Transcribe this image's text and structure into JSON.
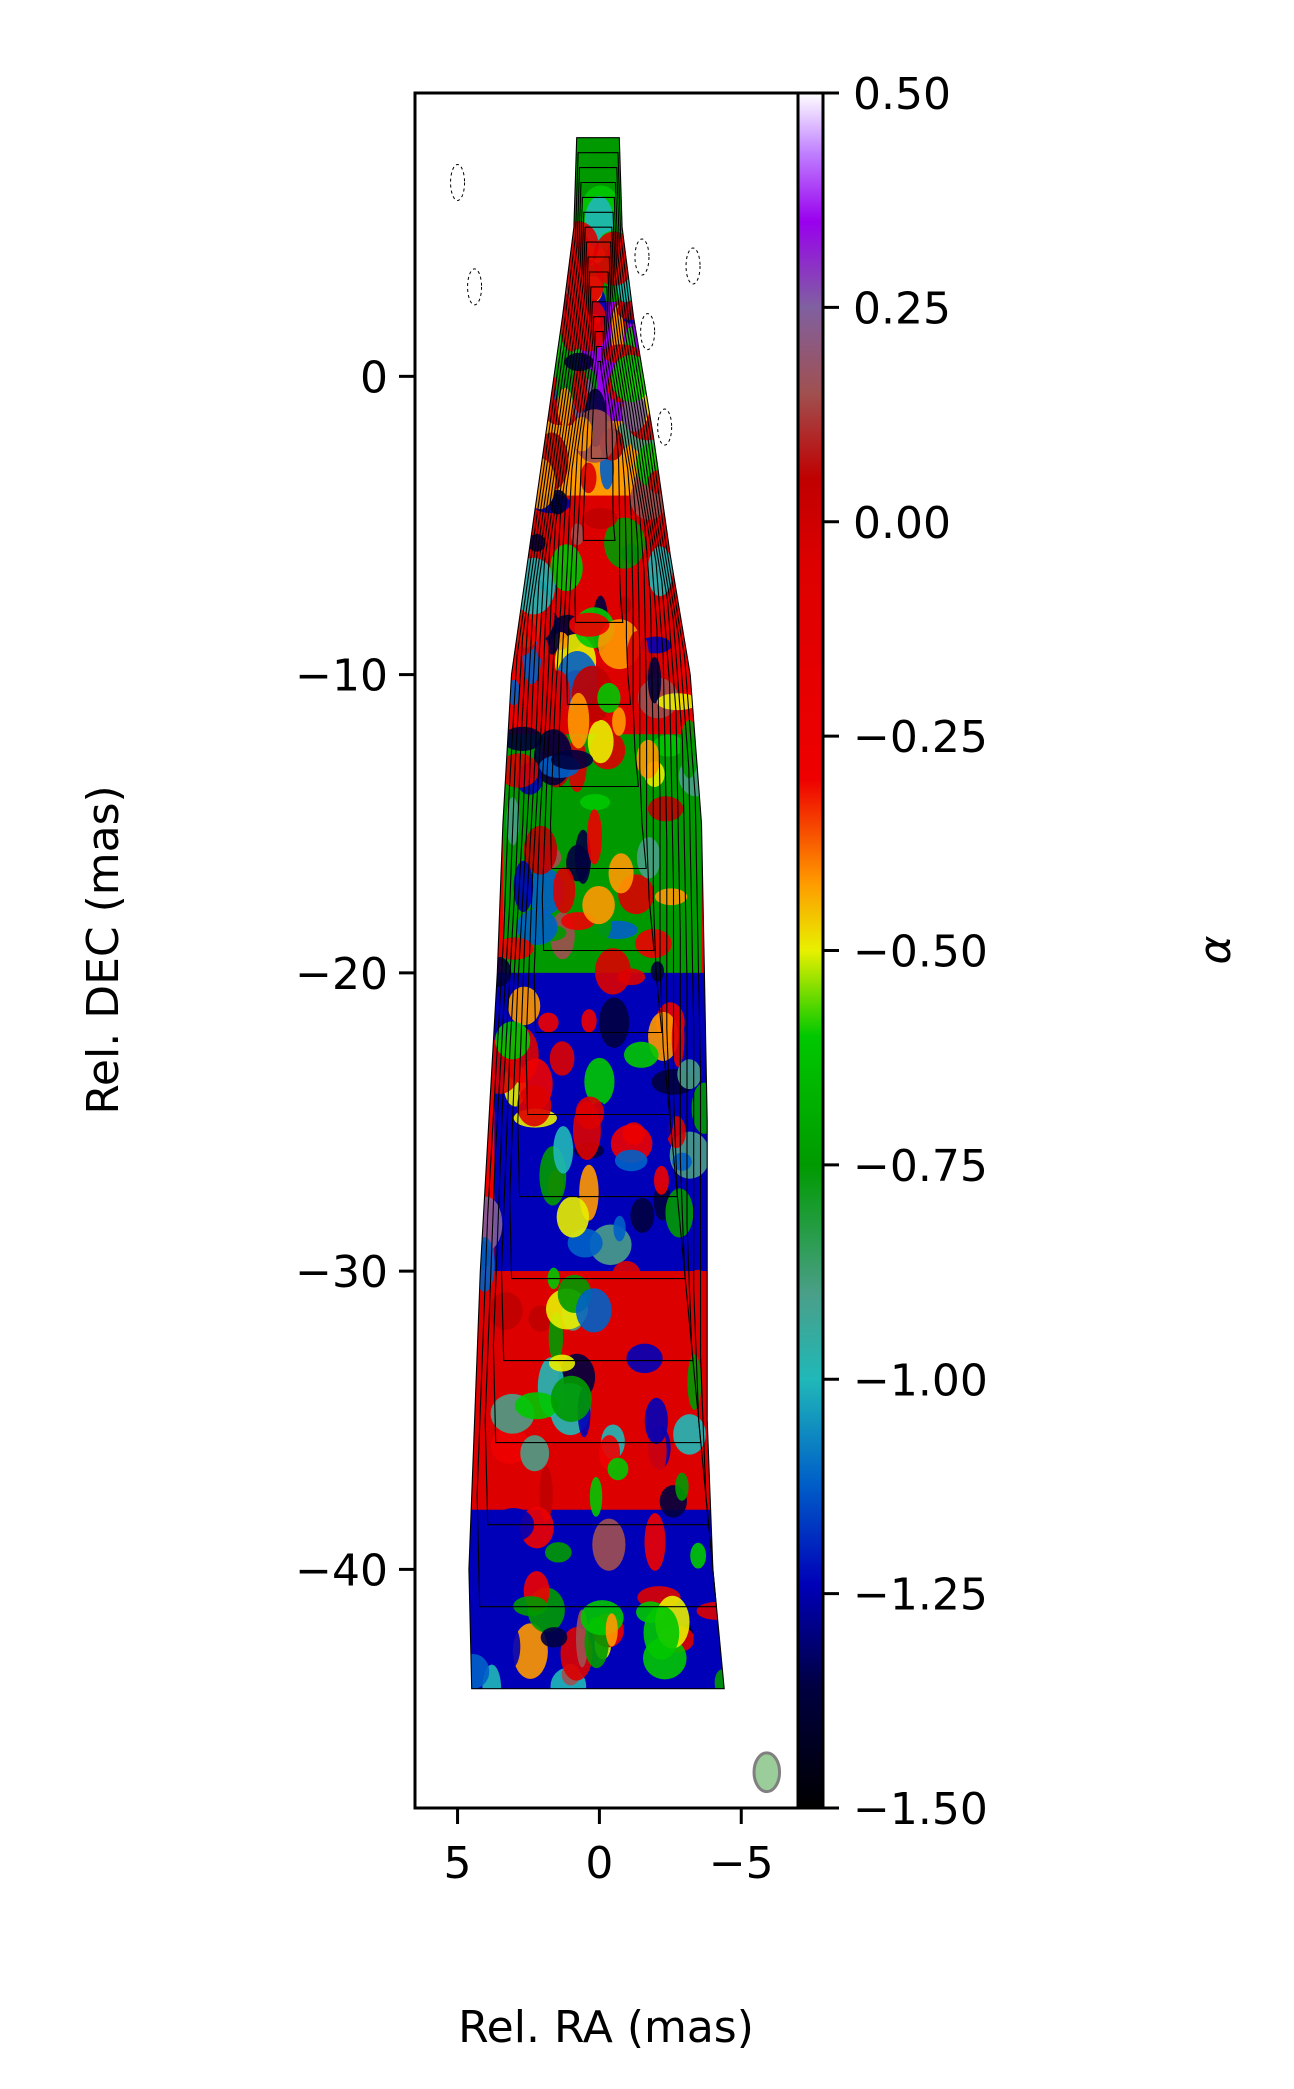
{
  "chart_data": {
    "type": "heatmap",
    "xlabel": "Rel. RA (mas)",
    "ylabel": "Rel. DEC (mas)",
    "x_axis": {
      "lim": [
        6.5,
        -7.0
      ],
      "ticks": [
        5,
        0,
        -5
      ],
      "tick_labels": [
        "5",
        "0",
        "−5"
      ]
    },
    "y_axis": {
      "lim": [
        -48.0,
        9.5
      ],
      "ticks": [
        0,
        -10,
        -20,
        -30,
        -40
      ],
      "tick_labels": [
        "0",
        "−10",
        "−20",
        "−30",
        "−40"
      ]
    },
    "colorbar": {
      "label": "α",
      "lim": [
        -1.5,
        0.5
      ],
      "ticks": [
        0.5,
        0.25,
        0.0,
        -0.25,
        -0.5,
        -0.75,
        -1.0,
        -1.25,
        -1.5
      ],
      "tick_labels": [
        "0.50",
        "0.25",
        "0.00",
        "−0.25",
        "−0.50",
        "−0.75",
        "−1.00",
        "−1.25",
        "−1.50"
      ],
      "colormap_stops": [
        {
          "v": -1.5,
          "color": "#000000"
        },
        {
          "v": -1.36,
          "color": "#000040"
        },
        {
          "v": -1.24,
          "color": "#0000b8"
        },
        {
          "v": -1.12,
          "color": "#0060c8"
        },
        {
          "v": -1.0,
          "color": "#20b8b8"
        },
        {
          "v": -0.9,
          "color": "#4a9f88"
        },
        {
          "v": -0.75,
          "color": "#009a00"
        },
        {
          "v": -0.6,
          "color": "#00c800"
        },
        {
          "v": -0.5,
          "color": "#e8f000"
        },
        {
          "v": -0.42,
          "color": "#ff9900"
        },
        {
          "v": -0.3,
          "color": "#ee0000"
        },
        {
          "v": -0.05,
          "color": "#dd0000"
        },
        {
          "v": 0.05,
          "color": "#c00000"
        },
        {
          "v": 0.15,
          "color": "#a05050"
        },
        {
          "v": 0.25,
          "color": "#8060a0"
        },
        {
          "v": 0.35,
          "color": "#9900ee"
        },
        {
          "v": 0.43,
          "color": "#c080ff"
        },
        {
          "v": 0.5,
          "color": "#ffffff"
        }
      ]
    },
    "jet_profile": [
      {
        "dec": 8.0,
        "left": 0.8,
        "right": -0.7
      },
      {
        "dec": 5.0,
        "left": 0.9,
        "right": -0.8
      },
      {
        "dec": 2.0,
        "left": 1.3,
        "right": -1.2
      },
      {
        "dec": -2.0,
        "left": 1.9,
        "right": -1.9
      },
      {
        "dec": -6.0,
        "left": 2.5,
        "right": -2.5
      },
      {
        "dec": -10.0,
        "left": 3.1,
        "right": -3.2
      },
      {
        "dec": -15.0,
        "left": 3.4,
        "right": -3.6
      },
      {
        "dec": -20.0,
        "left": 3.6,
        "right": -3.7
      },
      {
        "dec": -25.0,
        "left": 3.9,
        "right": -3.8
      },
      {
        "dec": -30.0,
        "left": 4.2,
        "right": -3.8
      },
      {
        "dec": -35.0,
        "left": 4.4,
        "right": -3.8
      },
      {
        "dec": -40.0,
        "left": 4.6,
        "right": -4.0
      },
      {
        "dec": -44.0,
        "left": 4.5,
        "right": -4.4
      }
    ],
    "alpha_regions": [
      {
        "ra_from": 2.0,
        "ra_to": -2.0,
        "dec_from": 9.0,
        "dec_to": 1.0,
        "alpha": -0.75
      },
      {
        "ra_from": 1.4,
        "ra_to": -1.4,
        "dec_from": 2.5,
        "dec_to": -2.5,
        "alpha": 0.3
      },
      {
        "ra_from": 2.0,
        "ra_to": -2.0,
        "dec_from": -1.5,
        "dec_to": -4.0,
        "alpha": -0.45
      },
      {
        "ra_from": 2.8,
        "ra_to": -2.8,
        "dec_from": -4.0,
        "dec_to": -12.0,
        "alpha": -0.2
      },
      {
        "ra_from": 3.4,
        "ra_to": -3.6,
        "dec_from": -12.0,
        "dec_to": -20.0,
        "alpha": -0.75
      },
      {
        "ra_from": 3.7,
        "ra_to": -3.8,
        "dec_from": -20.0,
        "dec_to": -30.0,
        "alpha": -1.3
      },
      {
        "ra_from": 4.5,
        "ra_to": -3.9,
        "dec_from": -30.0,
        "dec_to": -38.0,
        "alpha": -0.2
      },
      {
        "ra_from": 4.7,
        "ra_to": -4.4,
        "dec_from": -38.0,
        "dec_to": -44.5,
        "alpha": -1.35
      }
    ],
    "contour_levels": 16,
    "core": {
      "ra": 0.0,
      "dec": 0.0
    },
    "beam": {
      "ra": -5.9,
      "dec": -46.8,
      "major": 1.3,
      "minor": 0.9,
      "color": "#9acd9a"
    },
    "grid": false
  }
}
